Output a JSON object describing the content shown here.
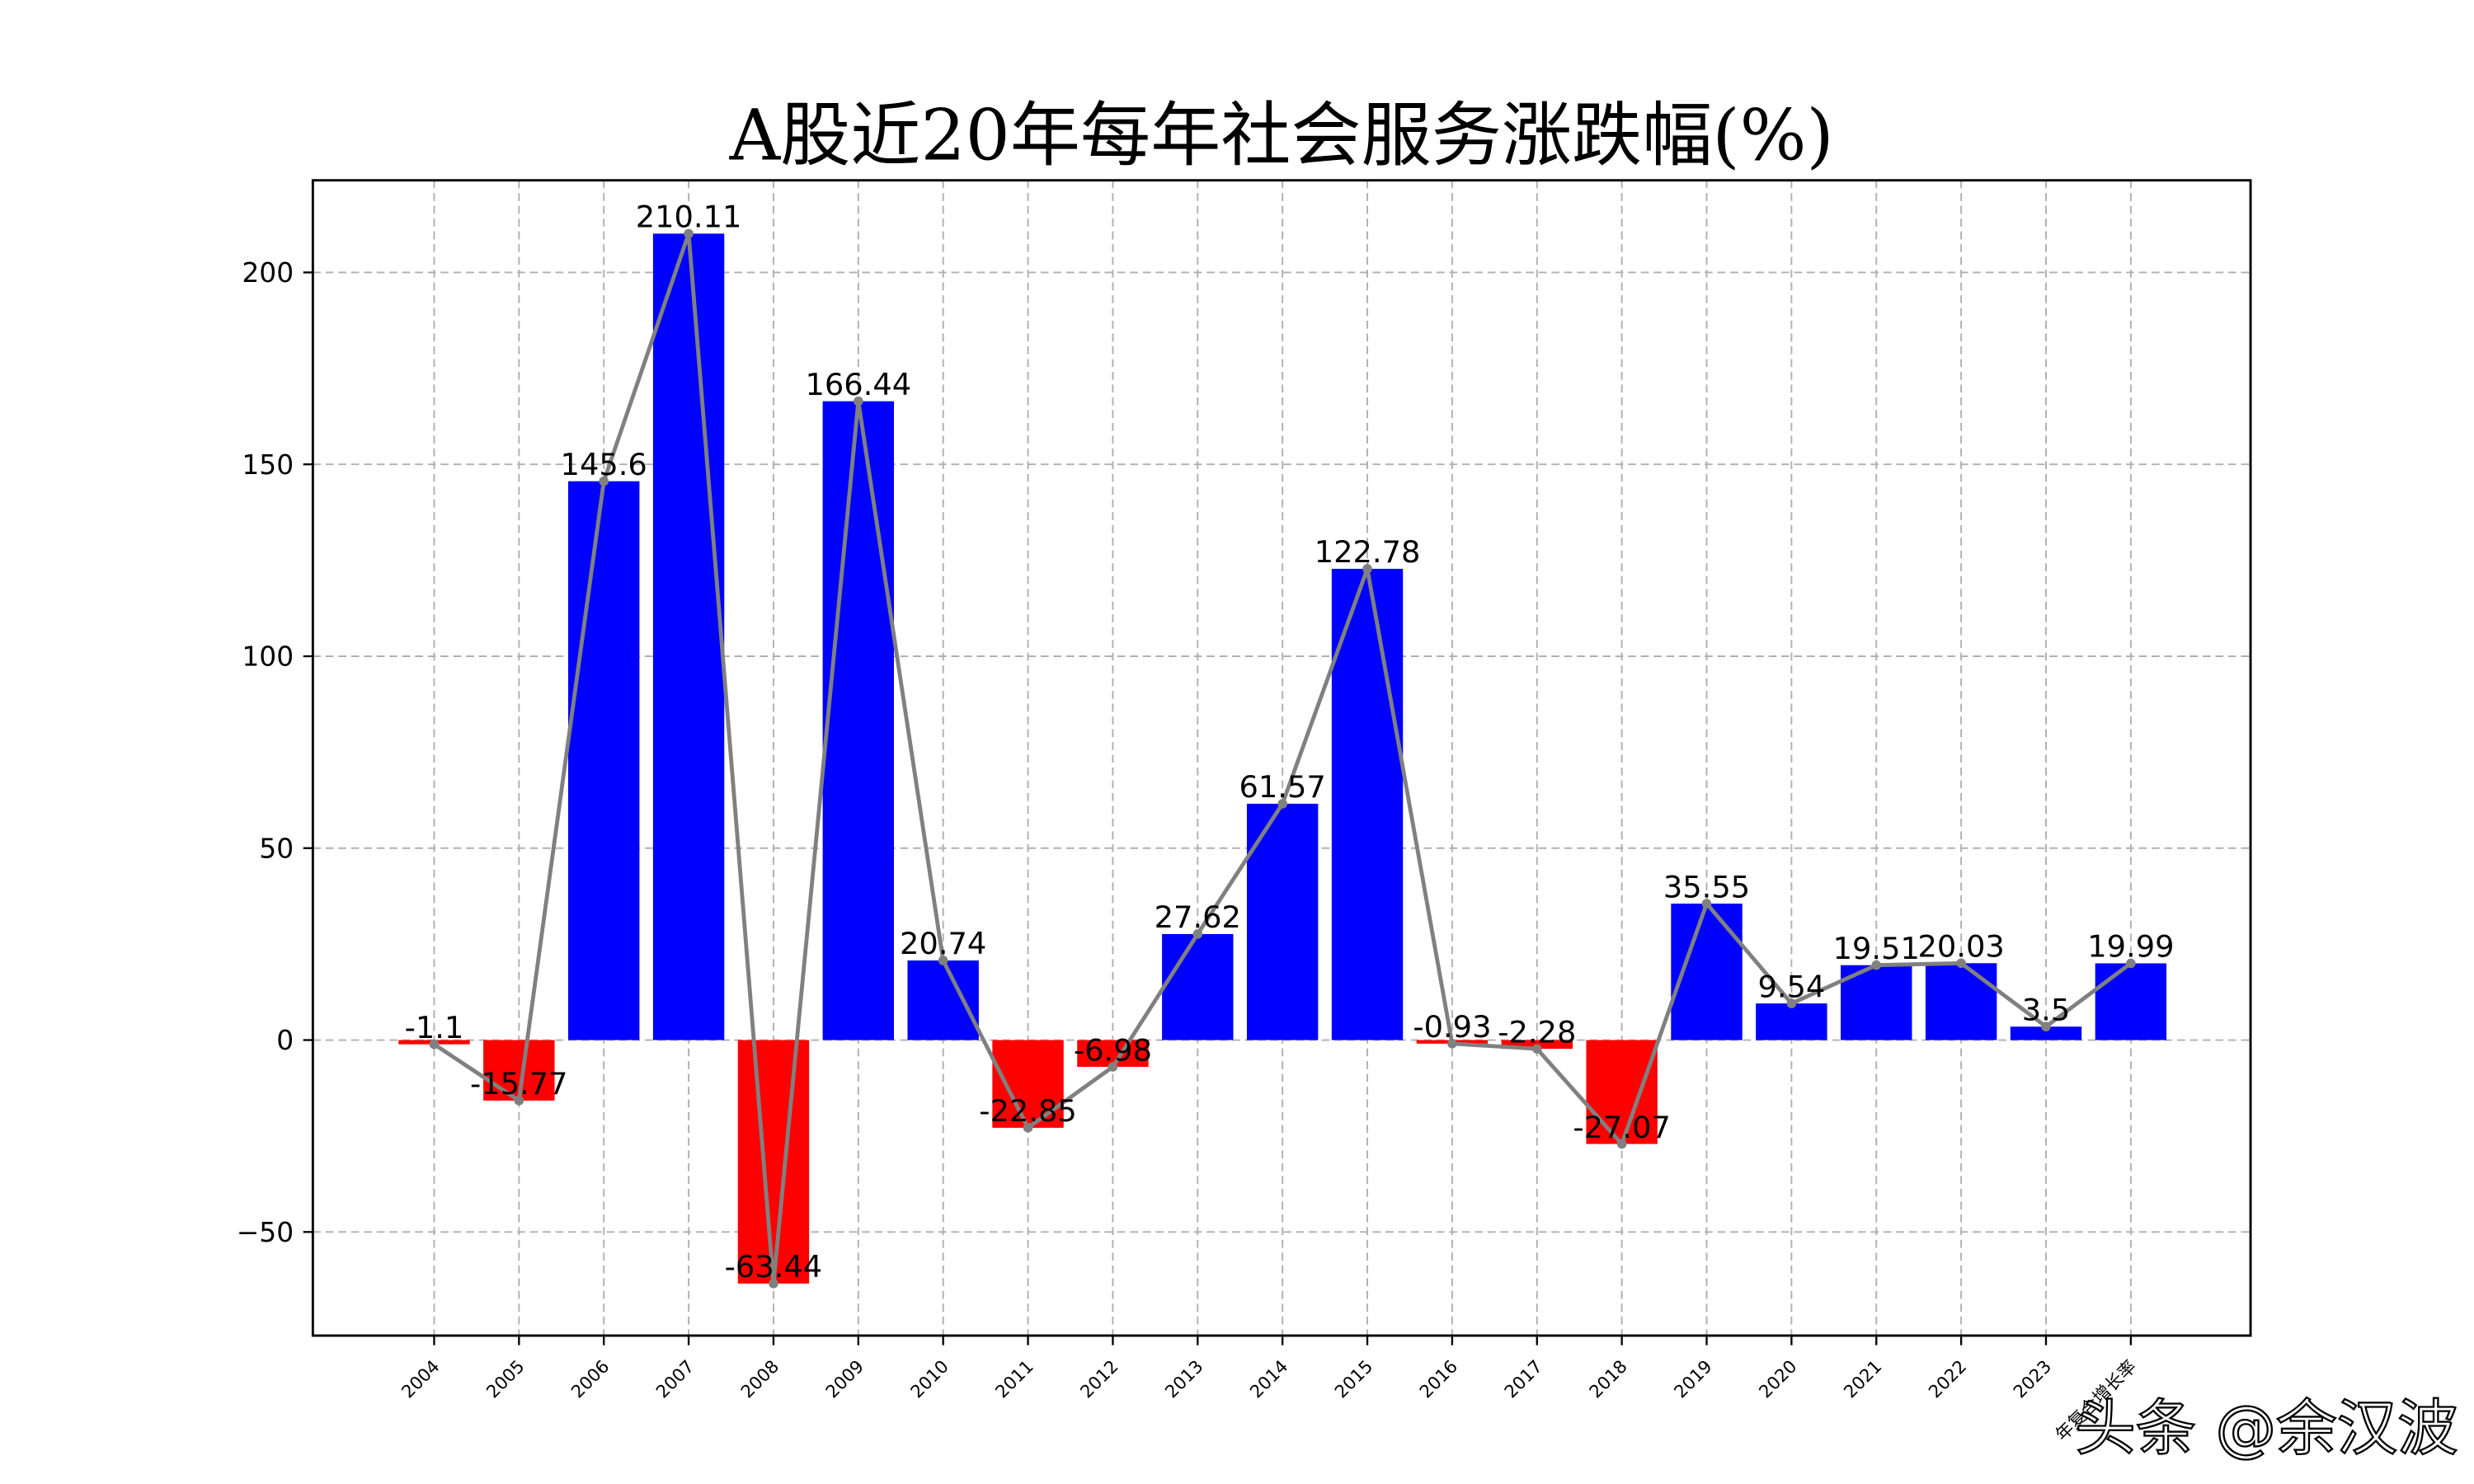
{
  "chart_data": {
    "type": "bar",
    "title": "A股近20年每年社会服务涨跌幅(%)",
    "xlabel": "",
    "ylabel": "",
    "categories": [
      "2004",
      "2005",
      "2006",
      "2007",
      "2008",
      "2009",
      "2010",
      "2011",
      "2012",
      "2013",
      "2014",
      "2015",
      "2016",
      "2017",
      "2018",
      "2019",
      "2020",
      "2021",
      "2022",
      "2023",
      "年复合增长率"
    ],
    "values": [
      -1.1,
      -15.77,
      145.6,
      210.11,
      -63.44,
      166.44,
      20.74,
      -22.85,
      -6.98,
      27.62,
      61.57,
      122.78,
      -0.93,
      -2.28,
      -27.07,
      35.55,
      9.54,
      19.51,
      20.03,
      3.5,
      19.99
    ],
    "data_labels": [
      "-1.1",
      "-15.77",
      "145.6",
      "210.11",
      "-63.44",
      "166.44",
      "20.74",
      "-22.85",
      "-6.98",
      "27.62",
      "61.57",
      "122.78",
      "-0.93",
      "-2.28",
      "-27.07",
      "35.55",
      "9.54",
      "19.51",
      "20.03",
      "3.5",
      "19.99"
    ],
    "overlay_line": {
      "type": "line",
      "color": "#808080",
      "markers": true
    },
    "positive_color": "#0000ff",
    "negative_color": "#ff0000",
    "ylim": [
      -77,
      224
    ],
    "yticks": [
      -50,
      0,
      50,
      100,
      150,
      200
    ],
    "ytick_labels": [
      "−50",
      "0",
      "50",
      "100",
      "150",
      "200"
    ],
    "grid": true,
    "legend": "none"
  },
  "watermark": "头条 @余汉波"
}
